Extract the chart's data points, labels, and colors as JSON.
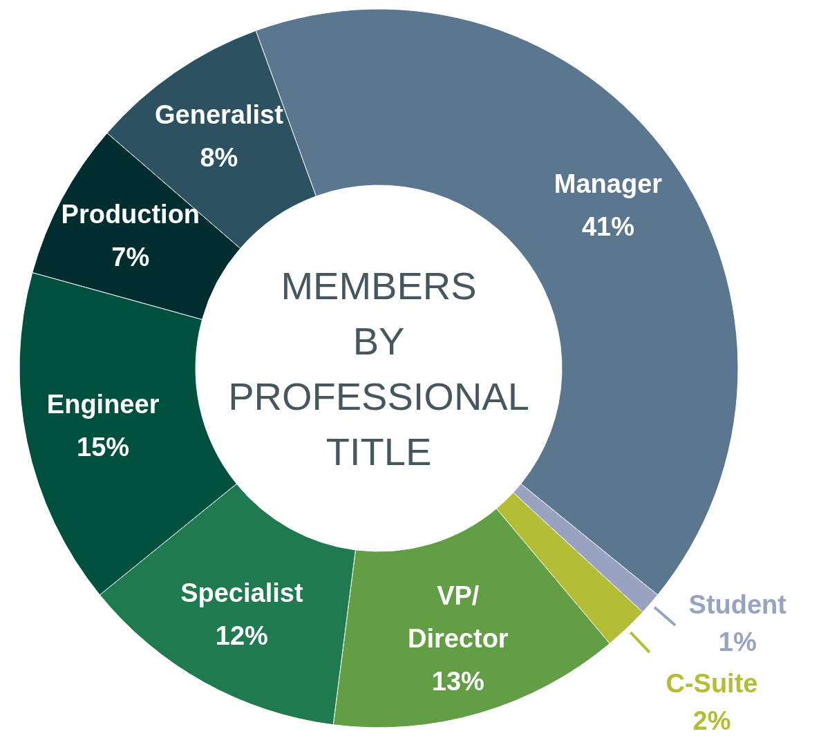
{
  "chart_data": {
    "type": "donut",
    "title": "MEMBERS BY PROFESSIONAL TITLE",
    "categories": [
      "Manager",
      "Student",
      "C-Suite",
      "VP/ Director",
      "Specialist",
      "Engineer",
      "Production",
      "Generalist"
    ],
    "values": [
      41,
      1,
      2,
      13,
      12,
      15,
      7,
      8
    ],
    "value_labels": [
      "41%",
      "1%",
      "2%",
      "13%",
      "12%",
      "15%",
      "7%",
      "8%"
    ],
    "colors": [
      "#5b778f",
      "#97a3c0",
      "#b3bd35",
      "#629e44",
      "#1f7a4f",
      "#00503f",
      "#002d30",
      "#2c5160"
    ]
  }
}
